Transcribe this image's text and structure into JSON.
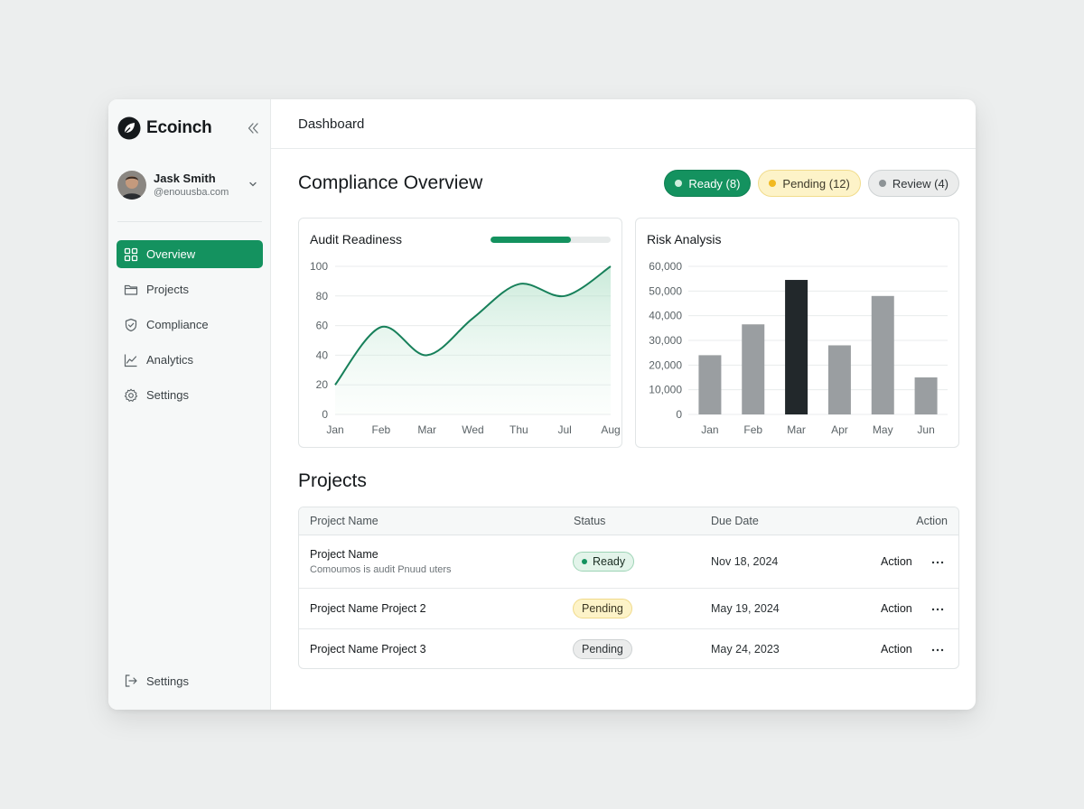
{
  "brand": {
    "name": "Ecoinch"
  },
  "user": {
    "name": "Jask Smith",
    "email": "@enouusba.com"
  },
  "nav": {
    "items": [
      {
        "label": "Overview",
        "icon": "grid-icon"
      },
      {
        "label": "Projects",
        "icon": "folder-icon"
      },
      {
        "label": "Compliance",
        "icon": "shield-icon"
      },
      {
        "label": "Analytics",
        "icon": "chart-line-icon"
      },
      {
        "label": "Settings",
        "icon": "gear-icon"
      }
    ],
    "bottom": {
      "label": "Settings",
      "icon": "logout-icon"
    }
  },
  "header": {
    "title": "Dashboard"
  },
  "overview": {
    "title": "Compliance Overview",
    "chips": {
      "ready": "Ready (8)",
      "pending": "Pending (12)",
      "review": "Review (4)"
    }
  },
  "audit": {
    "title": "Audit Readiness",
    "progress": 0.67
  },
  "risk": {
    "title": "Risk Analysis"
  },
  "chart_data": [
    {
      "type": "area",
      "title": "Audit Readiness",
      "categories": [
        "Jan",
        "Feb",
        "Mar",
        "Wed",
        "Thu",
        "Jul",
        "Aug"
      ],
      "values": [
        20,
        59,
        40,
        65,
        88,
        80,
        100
      ],
      "ylim": [
        0,
        100
      ],
      "yticks": [
        0,
        20,
        40,
        60,
        80,
        100
      ],
      "grid": true,
      "color": "#17805a"
    },
    {
      "type": "bar",
      "title": "Risk Analysis",
      "categories": [
        "Jan",
        "Feb",
        "Mar",
        "Apr",
        "May",
        "Jun"
      ],
      "values": [
        24000,
        36500,
        54500,
        28000,
        48000,
        15000
      ],
      "ylim": [
        0,
        60000
      ],
      "yticks": [
        "0",
        "10,000",
        "20,000",
        "30,000",
        "40,000",
        "50,000",
        "60,000"
      ],
      "grid": true,
      "highlight_index": 2,
      "colors": {
        "bar": "#9a9ea1",
        "highlight": "#22282b"
      }
    }
  ],
  "projects": {
    "title": "Projects",
    "columns": {
      "name": "Project Name",
      "status": "Status",
      "due": "Due Date",
      "action": "Action"
    },
    "rows": [
      {
        "name": "Project Name",
        "sub": "Comoumos is audit Pnuud uters",
        "status": "Ready",
        "due": "Nov 18, 2024",
        "action": "Action"
      },
      {
        "name": "Project Name Project 2",
        "sub": "",
        "status": "Pending",
        "due": "May 19, 2024",
        "action": "Action"
      },
      {
        "name": "Project Name Project 3",
        "sub": "",
        "status": "Pending",
        "due": "May 24, 2023",
        "action": "Action"
      }
    ]
  },
  "colors": {
    "accent": "#14925f",
    "pending": "#f1b920",
    "review": "#8d9396"
  }
}
